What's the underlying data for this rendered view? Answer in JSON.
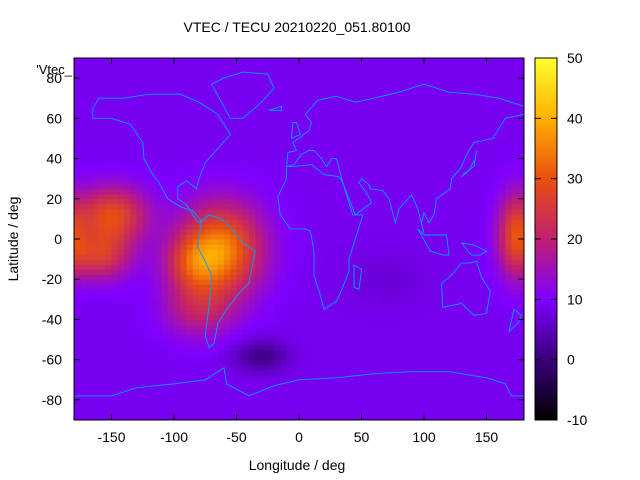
{
  "chart_data": {
    "type": "heatmap",
    "title": "VTEC / TECU 20210220_051.80100",
    "xlabel": "Longitude / deg",
    "ylabel": "Latitude / deg",
    "series_label": "'Vtec_",
    "xlim": [
      -180,
      180
    ],
    "ylim": [
      -90,
      90
    ],
    "xticks": [
      -150,
      -100,
      -50,
      0,
      50,
      100,
      150
    ],
    "yticks": [
      -80,
      -60,
      -40,
      -20,
      0,
      20,
      40,
      60,
      80
    ],
    "colorbar": {
      "range": [
        -10,
        50
      ],
      "ticks": [
        -10,
        0,
        10,
        20,
        30,
        40,
        50
      ],
      "colors": [
        "#000000",
        "#3a007a",
        "#7f00ff",
        "#c02070",
        "#e85010",
        "#ffb000",
        "#ffff30"
      ]
    },
    "background_value": 9,
    "blobs": [
      {
        "lon": -62,
        "lat": -5,
        "sx": 32,
        "sy": 22,
        "amp": 26
      },
      {
        "lon": -85,
        "lat": -12,
        "sx": 22,
        "sy": 14,
        "amp": 12
      },
      {
        "lon": -150,
        "lat": 12,
        "sx": 28,
        "sy": 14,
        "amp": 20
      },
      {
        "lon": -160,
        "lat": -8,
        "sx": 25,
        "sy": 12,
        "amp": 16
      },
      {
        "lon": -80,
        "lat": -35,
        "sx": 28,
        "sy": 14,
        "amp": 10
      },
      {
        "lon": 175,
        "lat": 2,
        "sx": 15,
        "sy": 20,
        "amp": 22
      },
      {
        "lon": -180,
        "lat": 2,
        "sx": 10,
        "sy": 18,
        "amp": 12
      },
      {
        "lon": -30,
        "lat": -58,
        "sx": 22,
        "sy": 8,
        "amp": -8
      },
      {
        "lon": 70,
        "lat": -20,
        "sx": 40,
        "sy": 15,
        "amp": -2
      }
    ],
    "coastline_color": "#00a0ff"
  }
}
